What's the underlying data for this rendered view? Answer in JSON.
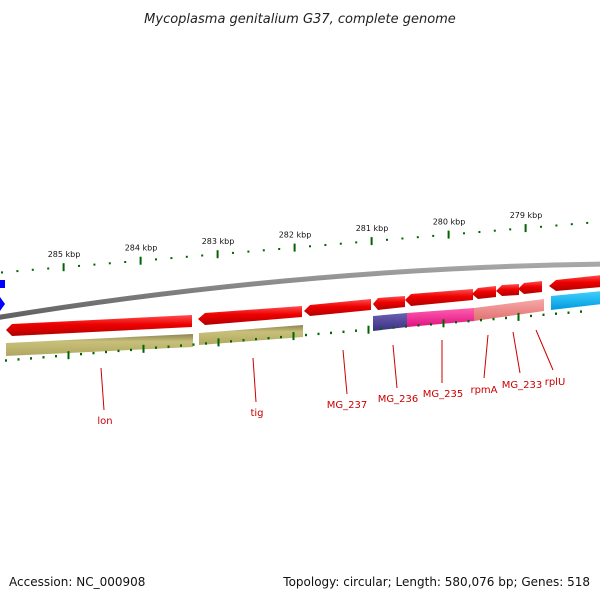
{
  "title": "Mycoplasma genitalium G37, complete genome",
  "footer": {
    "accession": "Accession: NC_000908",
    "summary": "Topology: circular; Length: 580,076 bp; Genes: 518"
  },
  "scale_labels": [
    "285 kbp",
    "284 kbp",
    "283 kbp",
    "282 kbp",
    "281 kbp",
    "280 kbp",
    "279 kbp"
  ],
  "gene_labels": [
    "lon",
    "tig",
    "MG_237",
    "MG_236",
    "MG_235",
    "rpmA",
    "MG_233",
    "rplU"
  ],
  "colors": {
    "backbone": "#808080",
    "gene_red": "#ee0000",
    "cog_olive": "#bdb76b",
    "cog_navy": "#483d8b",
    "cog_magenta": "#ff1493",
    "cog_pink": "#f08080",
    "cog_cyan": "#00bfff",
    "tick_green": "#006400",
    "label_red": "#cc0000",
    "marker_blue": "#0000ff"
  }
}
